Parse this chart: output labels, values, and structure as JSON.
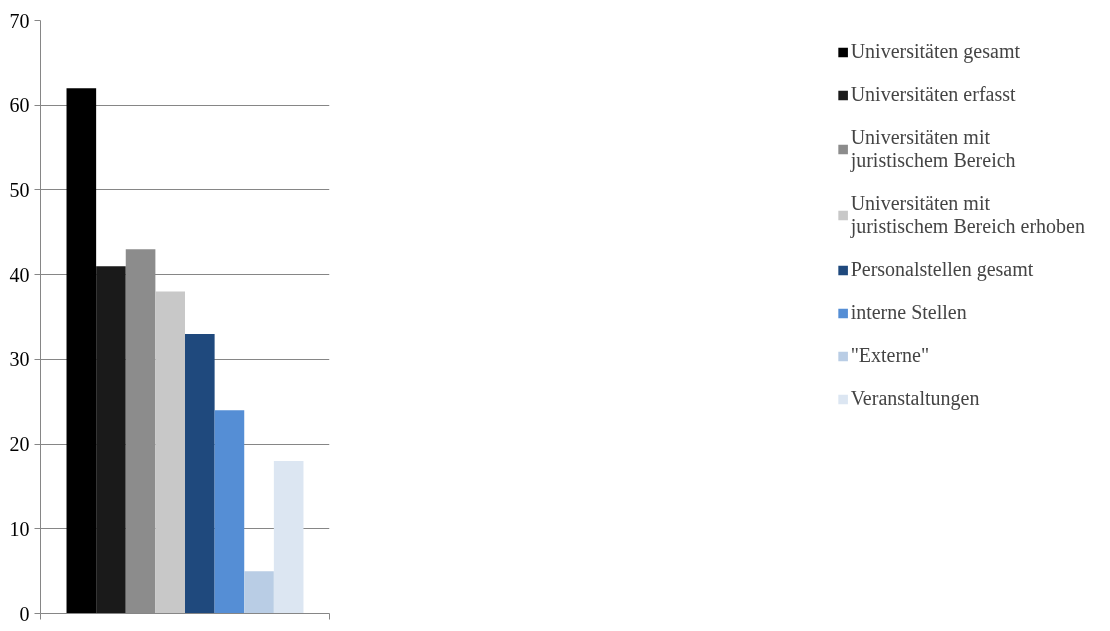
{
  "chart_data": {
    "type": "bar",
    "categories": [
      null
    ],
    "series": [
      {
        "name": "Universitäten gesamt",
        "color": "#000000",
        "values": [
          62
        ]
      },
      {
        "name": "Universitäten erfasst",
        "color": "#1a1a1a",
        "values": [
          41
        ]
      },
      {
        "name": "Universitäten mit juristischem Bereich",
        "color": "#8c8c8c",
        "values": [
          43
        ]
      },
      {
        "name": "Universitäten mit juristischem Bereich erhoben",
        "color": "#c8c8c8",
        "values": [
          38
        ]
      },
      {
        "name": "Personalstellen gesamt",
        "color": "#1f497d",
        "values": [
          33
        ]
      },
      {
        "name": "interne Stellen",
        "color": "#558ed5",
        "values": [
          24
        ]
      },
      {
        "name": "\"Externe\"",
        "color": "#b9cde5",
        "values": [
          5
        ]
      },
      {
        "name": "Veranstaltungen",
        "color": "#dce6f2",
        "values": [
          18
        ]
      }
    ],
    "ylim": [
      0,
      70
    ],
    "yticks": [
      0,
      10,
      20,
      30,
      40,
      50,
      60,
      70
    ],
    "grid": "y",
    "legend": "right"
  }
}
